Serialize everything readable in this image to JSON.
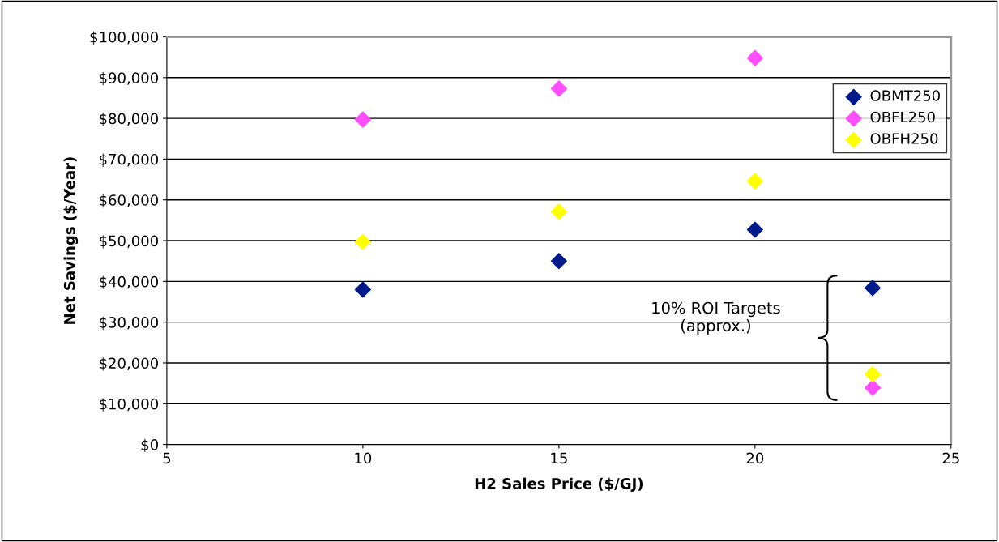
{
  "chart_data": {
    "type": "scatter",
    "xlabel": "H2 Sales Price ($/GJ)",
    "ylabel": "Net Savings ($/Year)",
    "xlim": [
      5,
      25
    ],
    "xticks": [
      5,
      10,
      15,
      20,
      25
    ],
    "ylim": [
      0,
      100000
    ],
    "yticks": [
      {
        "value": 0,
        "label": "$0"
      },
      {
        "value": 10000,
        "label": "$10,000"
      },
      {
        "value": 20000,
        "label": "$20,000"
      },
      {
        "value": 30000,
        "label": "$30,000"
      },
      {
        "value": 40000,
        "label": "$40,000"
      },
      {
        "value": 50000,
        "label": "$50,000"
      },
      {
        "value": 60000,
        "label": "$60,000"
      },
      {
        "value": 70000,
        "label": "$70,000"
      },
      {
        "value": 80000,
        "label": "$80,000"
      },
      {
        "value": 90000,
        "label": "$90,000"
      },
      {
        "value": 100000,
        "label": "$100,000"
      }
    ],
    "grid": "y",
    "legend": "right",
    "marker": "diamond",
    "x": [
      10,
      15,
      20,
      23
    ],
    "series": [
      {
        "name": "OBMT250",
        "color": "#001a8c",
        "values": [
          38000,
          45000,
          52700,
          38400
        ]
      },
      {
        "name": "OBFL250",
        "color": "#ff4dff",
        "values": [
          79700,
          87300,
          94800,
          13900
        ]
      },
      {
        "name": "OBFH250",
        "color": "#ffff00",
        "values": [
          49700,
          57100,
          64600,
          17200
        ]
      }
    ],
    "annotations": [
      "10% ROI Targets\n(approx.)"
    ]
  }
}
